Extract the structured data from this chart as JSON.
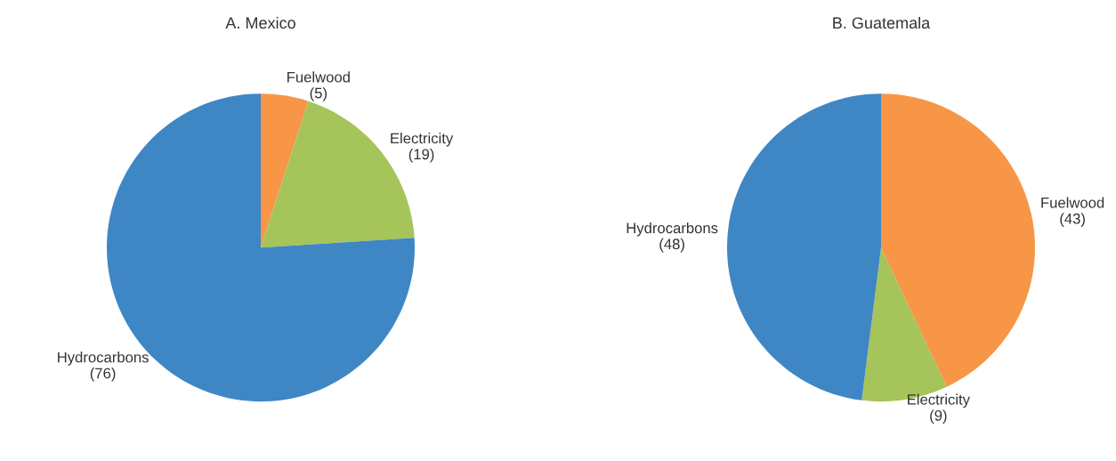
{
  "chart_data": [
    {
      "type": "pie",
      "title": "A. Mexico",
      "categories": [
        "Fuelwood",
        "Electricity",
        "Hydrocarbons"
      ],
      "values": [
        5,
        19,
        76
      ],
      "value_labels": [
        "(5)",
        "(19)",
        "(76)"
      ],
      "colors": [
        "#f79646",
        "#a5c45a",
        "#3f86c5"
      ]
    },
    {
      "type": "pie",
      "title": "B. Guatemala",
      "categories": [
        "Fuelwood",
        "Electricity",
        "Hydrocarbons"
      ],
      "values": [
        43,
        9,
        48
      ],
      "value_labels": [
        "(43)",
        "(9)",
        "(48)"
      ],
      "colors": [
        "#f79646",
        "#a5c45a",
        "#3f86c5"
      ]
    }
  ]
}
